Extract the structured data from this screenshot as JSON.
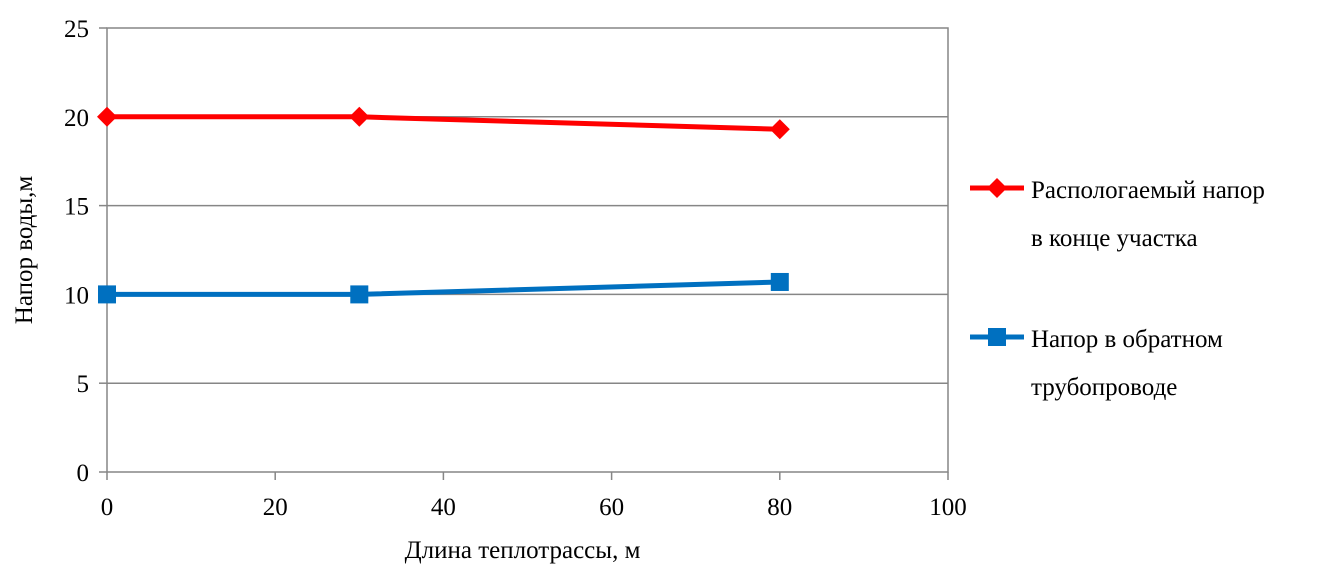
{
  "chart_data": {
    "type": "line",
    "title": "",
    "xlabel": "Длина теплотрассы, м",
    "ylabel": "Напор воды,м",
    "xlim": [
      0,
      100
    ],
    "ylim": [
      0,
      25
    ],
    "x_ticks": [
      0,
      20,
      40,
      60,
      80,
      100
    ],
    "y_ticks": [
      0,
      5,
      10,
      15,
      20,
      25
    ],
    "grid": "horizontal",
    "legend_position": "right",
    "series": [
      {
        "name_lines": [
          "Распологаемый напор",
          "в конце участка"
        ],
        "color": "#ff0000",
        "marker": "diamond",
        "x": [
          0,
          30,
          80
        ],
        "y": [
          20,
          20,
          19.3
        ]
      },
      {
        "name_lines": [
          "Напор в обратном",
          "трубопроводе"
        ],
        "color": "#0070c0",
        "marker": "square",
        "x": [
          0,
          30,
          80
        ],
        "y": [
          10,
          10,
          10.7
        ]
      }
    ]
  }
}
